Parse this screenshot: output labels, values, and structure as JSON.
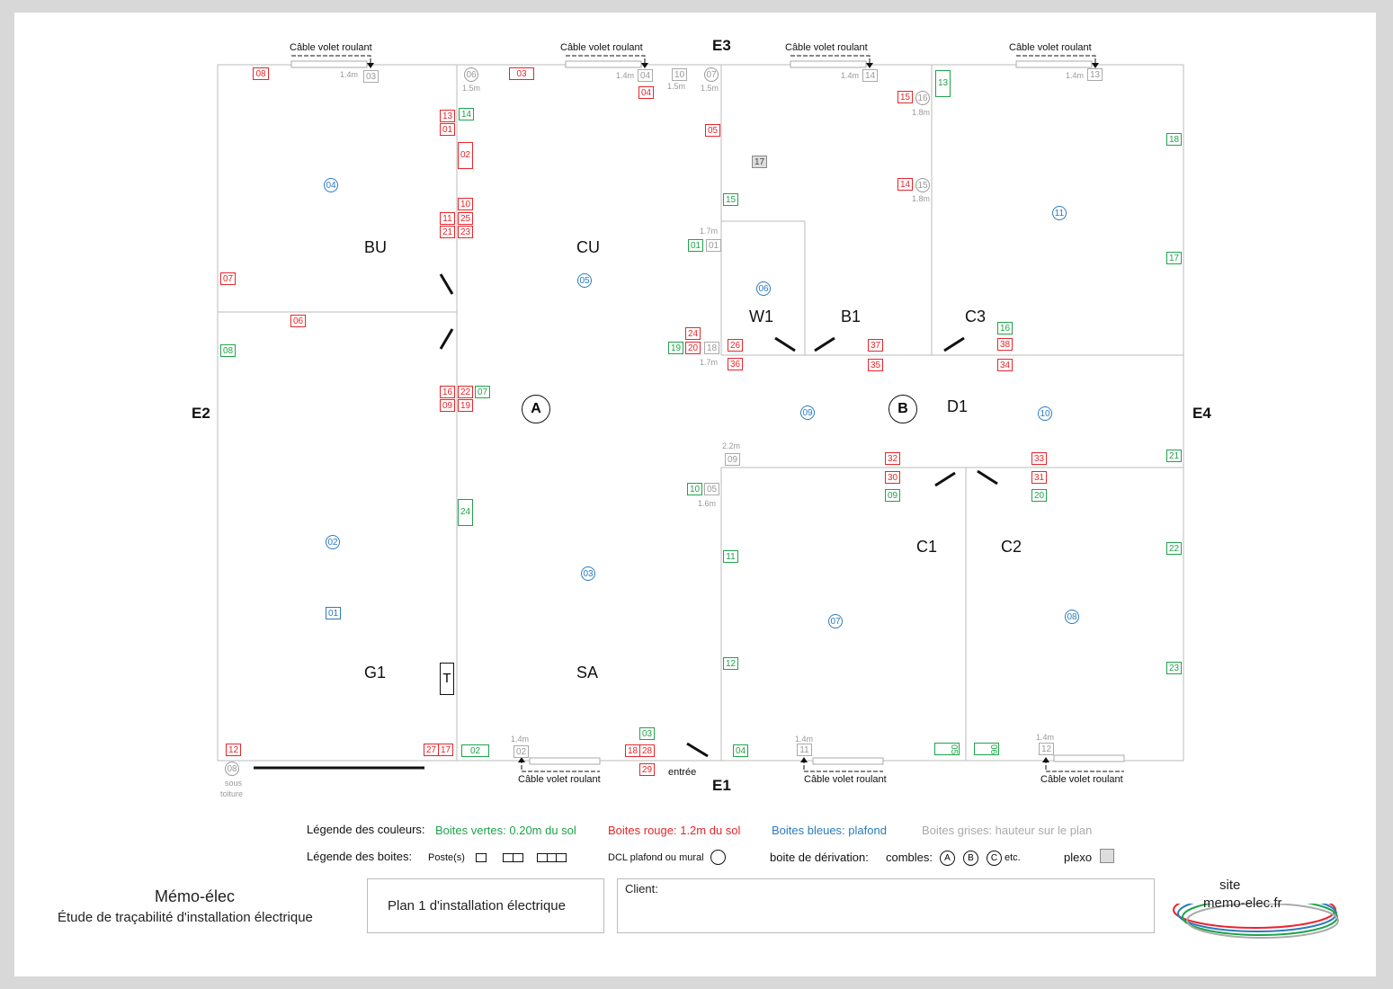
{
  "rooms": [
    "BU",
    "CU",
    "W1",
    "B1",
    "C3",
    "D1",
    "G1",
    "SA",
    "C1",
    "C2"
  ],
  "external": [
    "E1",
    "E2",
    "E3",
    "E4"
  ],
  "junction": [
    "A",
    "B"
  ],
  "cable_label": "Câble volet roulant",
  "entree": "entrée",
  "sous_toiture": [
    "sous",
    "toiture"
  ],
  "heights": {
    "h14": "1.4m",
    "h15": "1.5m",
    "h17": "1.7m",
    "h18": "1.8m",
    "h16": "1.6m",
    "h22": "2.2m"
  },
  "legend": {
    "colors_title": "Légende des couleurs:",
    "green": "Boites vertes:  0.20m du sol",
    "red": "Boites rouge: 1.2m du sol",
    "blue": "Boites bleues: plafond",
    "grey": "Boites grises: hauteur sur le plan",
    "boxes_title": "Légende des boites:",
    "poste": "Poste(s)",
    "dcl": "DCL plafond ou mural",
    "derivation": "boite de dérivation:",
    "combles": "combles:",
    "etc": "etc.",
    "plexo": "plexo",
    "circle_letters": [
      "A",
      "B",
      "C"
    ]
  },
  "footer": {
    "brand": "Mémo-élec",
    "subtitle": "Étude de traçabilité d'installation électrique",
    "plan_title": "Plan 1 d'installation électrique",
    "client_label": "Client:",
    "site_line1": "site",
    "site_line2": "memo-elec.fr"
  },
  "colors": {
    "red": "#e8262a",
    "green": "#1fa34a",
    "blue": "#2b7bbf",
    "grey": "#999999"
  },
  "red_boxes": [
    "08",
    "03",
    "04",
    "13",
    "01",
    "02",
    "10",
    "11",
    "25",
    "21",
    "23",
    "07",
    "06",
    "16",
    "22",
    "09",
    "19",
    "05",
    "15",
    "14",
    "24",
    "20",
    "26",
    "36",
    "37",
    "35",
    "38",
    "34",
    "32",
    "30",
    "33",
    "31",
    "12",
    "27",
    "17",
    "18",
    "28",
    "29"
  ],
  "green_boxes": [
    "14",
    "13",
    "18",
    "17",
    "15",
    "01",
    "19",
    "08",
    "07",
    "24",
    "16",
    "10",
    "09",
    "11",
    "21",
    "20",
    "22",
    "12",
    "23",
    "03",
    "04",
    "02",
    "05",
    "06"
  ],
  "grey_boxes": [
    "03",
    "04",
    "10",
    "14",
    "13",
    "01",
    "18",
    "09",
    "05",
    "02",
    "11",
    "12",
    "17"
  ],
  "blue_boxes": [
    "01"
  ],
  "blue_circles": [
    "04",
    "05",
    "06",
    "11",
    "09",
    "10",
    "02",
    "03",
    "07",
    "08"
  ],
  "grey_circles": [
    "06",
    "07",
    "16",
    "15",
    "08"
  ],
  "T_label": "T"
}
